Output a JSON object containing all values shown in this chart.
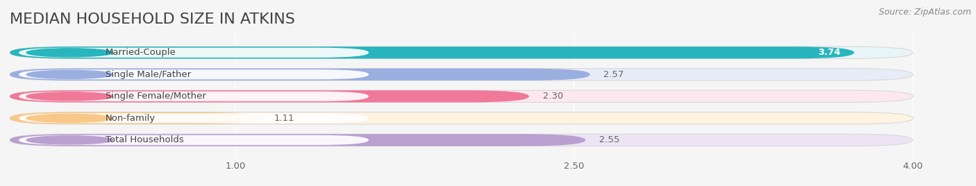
{
  "title": "MEDIAN HOUSEHOLD SIZE IN ATKINS",
  "source": "Source: ZipAtlas.com",
  "categories": [
    "Married-Couple",
    "Single Male/Father",
    "Single Female/Mother",
    "Non-family",
    "Total Households"
  ],
  "values": [
    3.74,
    2.57,
    2.3,
    1.11,
    2.55
  ],
  "value_labels": [
    "3.74",
    "2.57",
    "2.30",
    "1.11",
    "2.55"
  ],
  "bar_colors": [
    "#29b5bd",
    "#9baee0",
    "#f07898",
    "#f8c88a",
    "#b8a0d0"
  ],
  "bar_bg_colors": [
    "#e8f5f6",
    "#e8ecf8",
    "#fce8ee",
    "#fef2e0",
    "#ece4f4"
  ],
  "label_circle_colors": [
    "#29b5bd",
    "#9baee0",
    "#f07898",
    "#f8c88a",
    "#b8a0d0"
  ],
  "value_label_colors": [
    "#ffffff",
    "#666666",
    "#666666",
    "#666666",
    "#666666"
  ],
  "xlim_max": 4.15,
  "x_axis_max": 4.0,
  "xticks": [
    1.0,
    2.5,
    4.0
  ],
  "xtick_labels": [
    "1.00",
    "2.50",
    "4.00"
  ],
  "background_color": "#f5f5f5",
  "bar_bg_outer_color": "#e0e0e0",
  "title_fontsize": 16,
  "label_fontsize": 9.5,
  "value_fontsize": 9.5,
  "source_fontsize": 9
}
